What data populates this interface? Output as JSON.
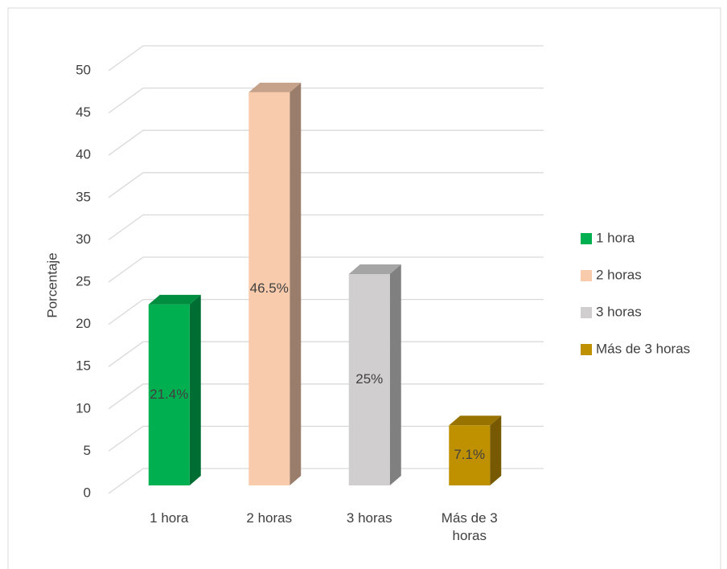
{
  "chart_data": {
    "type": "bar3d",
    "categories": [
      "1 hora",
      "2 horas",
      "3 horas",
      "Más de 3 horas"
    ],
    "values": [
      21.4,
      46.5,
      25,
      7.1
    ],
    "value_labels": [
      "21.4%",
      "46.5%",
      "25%",
      "7.1%"
    ],
    "colors": [
      "#00b050",
      "#f8cbad",
      "#d0cece",
      "#bf9000"
    ],
    "y_label": "Porcentaje",
    "ylim": [
      0,
      50
    ],
    "yticks": [
      0,
      5,
      10,
      15,
      20,
      25,
      30,
      35,
      40,
      45,
      50
    ],
    "grid": true,
    "legend": "right"
  }
}
